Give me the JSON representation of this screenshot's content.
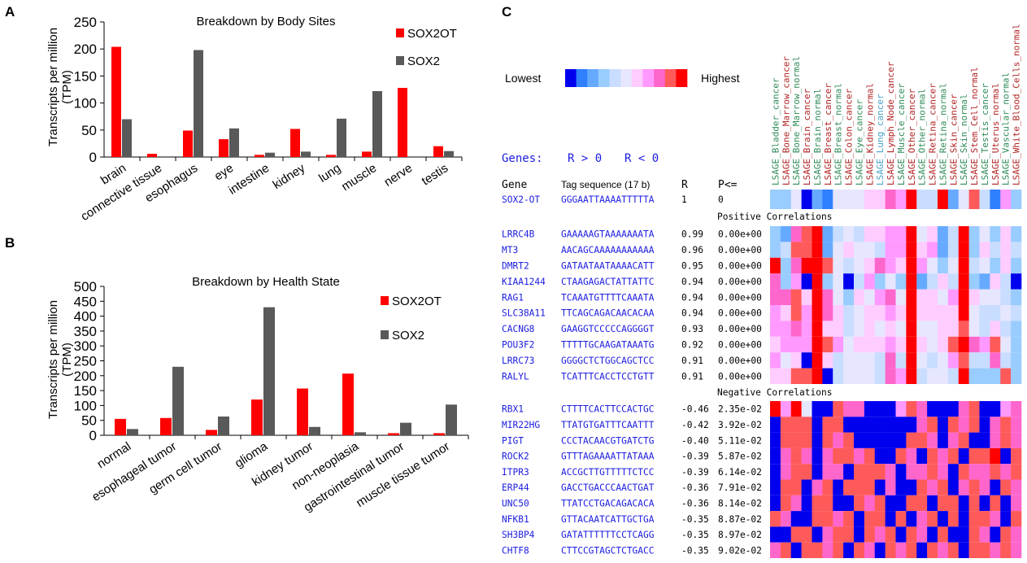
{
  "panels": {
    "a": "A",
    "b": "B",
    "c": "C"
  },
  "chart_data": [
    {
      "type": "bar",
      "title": "Breakdown by Body Sites",
      "ylabel": "Transcripts per million (TPM)",
      "ylabel_line1": "Transcripts per million",
      "ylabel_line2": "(TPM)",
      "xlabel": "",
      "ylim": [
        0,
        250
      ],
      "yticks": [
        0,
        50,
        100,
        150,
        200,
        250
      ],
      "categories": [
        "brain",
        "connective tissue",
        "esophagus",
        "eye",
        "intestine",
        "kidney",
        "lung",
        "muscle",
        "nerve",
        "testis"
      ],
      "series": [
        {
          "name": "SOX2OT",
          "color": "#ff0000",
          "values": [
            204,
            6,
            49,
            33,
            4,
            52,
            4,
            10,
            128,
            20
          ]
        },
        {
          "name": "SOX2",
          "color": "#595959",
          "values": [
            70,
            0,
            198,
            53,
            8,
            10,
            71,
            122,
            0,
            11
          ]
        }
      ],
      "legend": "top-right"
    },
    {
      "type": "bar",
      "title": "Breakdown by Health State",
      "ylabel": "Transcripts per million (TPM)",
      "ylabel_line1": "Transcripts per million",
      "ylabel_line2": "(TPM)",
      "xlabel": "",
      "ylim": [
        0,
        500
      ],
      "yticks": [
        0,
        50,
        100,
        150,
        200,
        250,
        300,
        350,
        400,
        450,
        500
      ],
      "categories": [
        "normal",
        "esophageal tumor",
        "germ cell tumor",
        "glioma",
        "kidney tumor",
        "non-neoplasia",
        "gastrointestinal tumor",
        "muscle tissue tumor"
      ],
      "series": [
        {
          "name": "SOX2OT",
          "color": "#ff0000",
          "values": [
            55,
            58,
            18,
            120,
            157,
            207,
            7,
            7
          ]
        },
        {
          "name": "SOX2",
          "color": "#595959",
          "values": [
            21,
            230,
            63,
            430,
            28,
            10,
            42,
            103
          ]
        }
      ],
      "legend": "top-right"
    },
    {
      "type": "heatmap",
      "scale": {
        "low_label": "Lowest",
        "high_label": "Highest",
        "colors": [
          "#0000ee",
          "#2f7fff",
          "#66aaff",
          "#99ccff",
          "#c8ddff",
          "#e6e6ff",
          "#ffccff",
          "#ff99ff",
          "#ff66cc",
          "#ff5a5a",
          "#ff0000"
        ]
      },
      "genes_line": {
        "label": "Genes:",
        "pos": "R > 0",
        "neg": "R < 0"
      },
      "headers": {
        "gene": "Gene",
        "tag": "Tag sequence (17 b)",
        "r": "R",
        "p": "P<="
      },
      "columns": [
        {
          "name": "LSAGE_Bladder_cancer",
          "color": "#2e8b57"
        },
        {
          "name": "LSAGE_Bone_Marrow_cancer",
          "color": "#b22222"
        },
        {
          "name": "LSAGE_Bone_Marrow_normal",
          "color": "#2e8b57"
        },
        {
          "name": "LSAGE_Brain_cancer",
          "color": "#b22222"
        },
        {
          "name": "LSAGE_Brain_normal",
          "color": "#2e8b57"
        },
        {
          "name": "LSAGE_Breast_cancer",
          "color": "#b22222"
        },
        {
          "name": "LSAGE_Breast_normal",
          "color": "#2e8b57"
        },
        {
          "name": "LSAGE_Colon_cancer",
          "color": "#b22222"
        },
        {
          "name": "LSAGE_Eye_cancer",
          "color": "#2e8b57"
        },
        {
          "name": "LSAGE_Kidney_normal",
          "color": "#b22222"
        },
        {
          "name": "LSAGE_Lung_cancer",
          "color": "#4aa3c8"
        },
        {
          "name": "LSAGE_Lymph_Node_cancer",
          "color": "#b22222"
        },
        {
          "name": "LSAGE_Muscle_cancer",
          "color": "#2e8b57"
        },
        {
          "name": "LSAGE_Other_cancer",
          "color": "#b22222"
        },
        {
          "name": "LSAGE_Other_normal",
          "color": "#2e8b57"
        },
        {
          "name": "LSAGE_Retina_cancer",
          "color": "#b22222"
        },
        {
          "name": "LSAGE_Retina_normal",
          "color": "#2e8b57"
        },
        {
          "name": "LSAGE_Skin_cancer",
          "color": "#b22222"
        },
        {
          "name": "LSAGE_Skin_normal",
          "color": "#2e8b57"
        },
        {
          "name": "LSAGE_Stem_Cell_normal",
          "color": "#b22222"
        },
        {
          "name": "LSAGE_Testis_cancer",
          "color": "#2e8b57"
        },
        {
          "name": "LSAGE_Uterus_normal",
          "color": "#b22222"
        },
        {
          "name": "LSAGE_Vascular_normal",
          "color": "#2e8b57"
        },
        {
          "name": "LSAGE_White_Blood_Cells_normal",
          "color": "#b22222"
        }
      ],
      "query": {
        "gene": "SOX2-OT",
        "tag": "GGGAATTAAAATTTTTA",
        "r": "1",
        "p": "0",
        "levels": [
          3,
          3,
          5,
          0,
          2,
          1,
          5,
          5,
          5,
          6,
          6,
          8,
          7,
          10,
          4,
          4,
          10,
          2,
          5,
          9,
          4,
          1,
          7,
          3
        ]
      },
      "positive_label": "Positive Correlations",
      "positive": [
        {
          "gene": "LRRC4B",
          "tag": "GAAAAAGTAAAAAAATA",
          "r": "0.99",
          "p": "0.00e+00",
          "levels": [
            3,
            2,
            8,
            9,
            10,
            2,
            4,
            5,
            4,
            6,
            6,
            7,
            7,
            10,
            5,
            6,
            2,
            4,
            10,
            3,
            5,
            3,
            6,
            3
          ]
        },
        {
          "gene": "MT3",
          "tag": "AACAGCAAAAAAAAAAA",
          "r": "0.96",
          "p": "0.00e+00",
          "levels": [
            3,
            4,
            9,
            9,
            10,
            2,
            5,
            6,
            5,
            5,
            4,
            7,
            7,
            10,
            6,
            7,
            2,
            4,
            10,
            3,
            6,
            4,
            6,
            4
          ]
        },
        {
          "gene": "DMRT2",
          "tag": "GATAATAATAAAACATT",
          "r": "0.95",
          "p": "0.00e+00",
          "levels": [
            10,
            3,
            8,
            10,
            10,
            9,
            5,
            4,
            5,
            6,
            8,
            7,
            6,
            10,
            7,
            5,
            3,
            5,
            10,
            4,
            5,
            3,
            6,
            3
          ]
        },
        {
          "gene": "KIAA1244",
          "tag": "CTAAGAGACTATTATTC",
          "r": "0.94",
          "p": "0.00e+00",
          "levels": [
            8,
            3,
            7,
            0,
            10,
            3,
            5,
            0,
            4,
            7,
            3,
            5,
            3,
            10,
            2,
            4,
            6,
            4,
            10,
            3,
            2,
            6,
            4,
            0
          ]
        },
        {
          "gene": "RAG1",
          "tag": "TCAAATGTTTTCAAATA",
          "r": "0.94",
          "p": "0.00e+00",
          "levels": [
            8,
            8,
            9,
            6,
            10,
            8,
            5,
            3,
            6,
            5,
            7,
            8,
            5,
            10,
            6,
            6,
            5,
            7,
            10,
            6,
            5,
            5,
            4,
            3
          ]
        },
        {
          "gene": "SLC38A11",
          "tag": "TTCAGCAGACAACACAA",
          "r": "0.94",
          "p": "0.00e+00",
          "levels": [
            7,
            6,
            9,
            7,
            10,
            8,
            6,
            4,
            5,
            6,
            6,
            7,
            6,
            10,
            6,
            6,
            6,
            6,
            10,
            5,
            4,
            4,
            5,
            4
          ]
        },
        {
          "gene": "CACNG8",
          "tag": "GAAGGTCCCCCAGGGGT",
          "r": "0.93",
          "p": "0.00e+00",
          "levels": [
            7,
            7,
            8,
            7,
            10,
            6,
            6,
            4,
            5,
            6,
            5,
            6,
            5,
            10,
            5,
            5,
            6,
            6,
            9,
            5,
            4,
            6,
            4,
            3
          ]
        },
        {
          "gene": "POU3F2",
          "tag": "TTTTTGCAAGATAAATG",
          "r": "0.92",
          "p": "0.00e+00",
          "levels": [
            6,
            7,
            7,
            7,
            10,
            9,
            7,
            5,
            6,
            6,
            6,
            7,
            6,
            10,
            6,
            5,
            6,
            9,
            10,
            8,
            7,
            9,
            5,
            3
          ]
        },
        {
          "gene": "LRRC73",
          "tag": "GGGGCTCTGGCAGCTCC",
          "r": "0.91",
          "p": "0.00e+00",
          "levels": [
            7,
            5,
            6,
            0,
            10,
            6,
            4,
            5,
            5,
            5,
            4,
            8,
            4,
            10,
            5,
            4,
            5,
            7,
            9,
            4,
            4,
            8,
            4,
            3
          ]
        },
        {
          "gene": "RALYL",
          "tag": "TCATTTCACCTCCTGTT",
          "r": "0.91",
          "p": "0.00e+00",
          "levels": [
            6,
            6,
            9,
            9,
            10,
            0,
            4,
            5,
            5,
            5,
            4,
            8,
            7,
            10,
            4,
            5,
            5,
            4,
            10,
            3,
            3,
            3,
            9,
            3
          ]
        }
      ],
      "negative_label": "Negative Correlations",
      "negative": [
        {
          "gene": "RBX1",
          "tag": "CTTTTCACTTCCACTGC",
          "r": "-0.46",
          "p": "2.35e-02",
          "levels": [
            10,
            7,
            10,
            5,
            0,
            0,
            9,
            8,
            8,
            0,
            0,
            0,
            7,
            9,
            8,
            0,
            0,
            0,
            8,
            9,
            0,
            0,
            7,
            8
          ]
        },
        {
          "gene": "MIR22HG",
          "tag": "TTATGTGATTTCAATTT",
          "r": "-0.42",
          "p": "3.92e-02",
          "levels": [
            0,
            9,
            9,
            9,
            0,
            9,
            9,
            0,
            0,
            0,
            0,
            0,
            0,
            0,
            8,
            9,
            0,
            9,
            8,
            9,
            0,
            8,
            9,
            8
          ]
        },
        {
          "gene": "PIGT",
          "tag": "CCCTACAACGTGATCTG",
          "r": "-0.40",
          "p": "5.11e-02",
          "levels": [
            0,
            9,
            9,
            9,
            0,
            9,
            8,
            9,
            0,
            0,
            0,
            0,
            0,
            9,
            9,
            8,
            0,
            8,
            9,
            0,
            0,
            8,
            9,
            8
          ]
        },
        {
          "gene": "ROCK2",
          "tag": "GTTTAGAAAATTATAAA",
          "r": "-0.39",
          "p": "5.87e-02",
          "levels": [
            0,
            8,
            9,
            8,
            0,
            8,
            9,
            9,
            8,
            9,
            0,
            0,
            9,
            8,
            0,
            9,
            8,
            9,
            0,
            9,
            9,
            10,
            0,
            9
          ]
        },
        {
          "gene": "ITPR3",
          "tag": "ACCGCTTGTTTTTCTCC",
          "r": "-0.39",
          "p": "6.14e-02",
          "levels": [
            0,
            8,
            9,
            9,
            0,
            8,
            8,
            0,
            9,
            9,
            9,
            8,
            0,
            8,
            8,
            9,
            8,
            0,
            9,
            8,
            8,
            9,
            8,
            9
          ]
        },
        {
          "gene": "ERP44",
          "tag": "GACCTGACCCAACTGAT",
          "r": "-0.36",
          "p": "7.91e-02",
          "levels": [
            0,
            9,
            9,
            0,
            8,
            9,
            0,
            9,
            9,
            9,
            0,
            8,
            0,
            0,
            9,
            8,
            9,
            0,
            8,
            9,
            8,
            0,
            9,
            8
          ]
        },
        {
          "gene": "UNC50",
          "tag": "TTATCCTGACAGACACA",
          "r": "-0.36",
          "p": "8.14e-02",
          "levels": [
            0,
            9,
            8,
            0,
            9,
            9,
            0,
            0,
            9,
            8,
            9,
            0,
            0,
            9,
            9,
            0,
            9,
            9,
            0,
            9,
            0,
            9,
            0,
            8
          ]
        },
        {
          "gene": "NFKB1",
          "tag": "GTTACAATCATTGCTGA",
          "r": "-0.35",
          "p": "8.87e-02",
          "levels": [
            9,
            8,
            0,
            0,
            9,
            9,
            8,
            9,
            0,
            9,
            9,
            0,
            9,
            0,
            8,
            9,
            0,
            9,
            0,
            9,
            9,
            8,
            0,
            9
          ]
        },
        {
          "gene": "SH3BP4",
          "tag": "GATATTTTTTCCTCAGG",
          "r": "-0.35",
          "p": "8.97e-02",
          "levels": [
            0,
            0,
            9,
            9,
            0,
            8,
            9,
            9,
            0,
            9,
            8,
            9,
            0,
            9,
            8,
            0,
            9,
            0,
            0,
            9,
            8,
            0,
            9,
            8
          ]
        },
        {
          "gene": "CHTF8",
          "tag": "CTTCCGTAGCTCTGACC",
          "r": "-0.35",
          "p": "9.02e-02",
          "levels": [
            8,
            9,
            0,
            9,
            9,
            8,
            9,
            0,
            9,
            8,
            0,
            9,
            8,
            9,
            0,
            9,
            8,
            9,
            0,
            9,
            9,
            8,
            9,
            8
          ]
        }
      ]
    }
  ]
}
